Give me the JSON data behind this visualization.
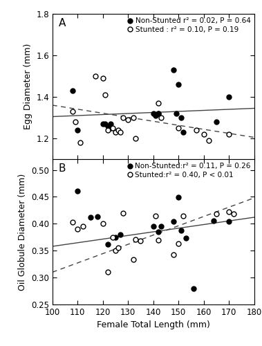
{
  "panel_A": {
    "label": "A",
    "ylabel": "Egg Diameter (mm)",
    "ylim": [
      1.1,
      1.8
    ],
    "yticks": [
      1.2,
      1.4,
      1.6,
      1.8
    ],
    "legend_text_ns": "Non-Stunted r² = 0.02, P = 0.64",
    "legend_text_s": "Stunted : r² = 0.10, P = 0.19",
    "ns_x": [
      108,
      110,
      120,
      121,
      122,
      123,
      123,
      140,
      141,
      142,
      142,
      148,
      149,
      150,
      151,
      152,
      165,
      170
    ],
    "ns_y": [
      1.43,
      1.24,
      1.27,
      1.27,
      1.26,
      1.27,
      1.25,
      1.32,
      1.31,
      1.32,
      1.32,
      1.53,
      1.32,
      1.46,
      1.3,
      1.23,
      1.28,
      1.4
    ],
    "s_x": [
      108,
      109,
      111,
      117,
      120,
      121,
      122,
      124,
      125,
      126,
      127,
      128,
      130,
      132,
      133,
      142,
      143,
      150,
      157,
      160,
      162,
      170
    ],
    "s_y": [
      1.33,
      1.28,
      1.18,
      1.5,
      1.49,
      1.41,
      1.24,
      1.25,
      1.23,
      1.24,
      1.23,
      1.3,
      1.29,
      1.3,
      1.2,
      1.37,
      1.3,
      1.25,
      1.24,
      1.22,
      1.19,
      1.22
    ],
    "ns_trend_x": [
      100,
      180
    ],
    "ns_trend_y": [
      1.305,
      1.345
    ],
    "s_trend_x": [
      100,
      180
    ],
    "s_trend_y": [
      1.36,
      1.205
    ]
  },
  "panel_B": {
    "label": "B",
    "ylabel": "Oil Globule Diameter (mm)",
    "ylim": [
      0.25,
      0.52
    ],
    "yticks": [
      0.25,
      0.3,
      0.35,
      0.4,
      0.45,
      0.5
    ],
    "legend_text_ns": "Non-Stunted:r² = 0.11, P = 0.26",
    "legend_text_s": "Stunted:r² = 0.40, P < 0.01",
    "ns_x": [
      110,
      115,
      118,
      122,
      125,
      127,
      140,
      142,
      143,
      148,
      150,
      151,
      153,
      156,
      164,
      170
    ],
    "ns_y": [
      0.461,
      0.412,
      0.413,
      0.362,
      0.375,
      0.38,
      0.395,
      0.385,
      0.395,
      0.404,
      0.449,
      0.388,
      0.374,
      0.28,
      0.405,
      0.404
    ],
    "s_x": [
      108,
      110,
      112,
      120,
      122,
      124,
      125,
      126,
      128,
      132,
      133,
      135,
      141,
      142,
      148,
      150,
      152,
      165,
      170,
      172
    ],
    "s_y": [
      0.403,
      0.39,
      0.395,
      0.4,
      0.311,
      0.375,
      0.35,
      0.356,
      0.42,
      0.333,
      0.371,
      0.368,
      0.414,
      0.37,
      0.342,
      0.363,
      0.415,
      0.419,
      0.422,
      0.419
    ],
    "ns_trend_x": [
      100,
      180
    ],
    "ns_trend_y": [
      0.358,
      0.412
    ],
    "s_trend_x": [
      100,
      180
    ],
    "s_trend_y": [
      0.31,
      0.448
    ]
  },
  "xlabel": "Female Total Length (mm)",
  "xlim": [
    100,
    180
  ],
  "xticks": [
    100,
    110,
    120,
    130,
    140,
    150,
    160,
    170,
    180
  ],
  "marker_size": 5,
  "linewidth": 1.0,
  "background_color": "#ffffff",
  "line_color": "#444444"
}
